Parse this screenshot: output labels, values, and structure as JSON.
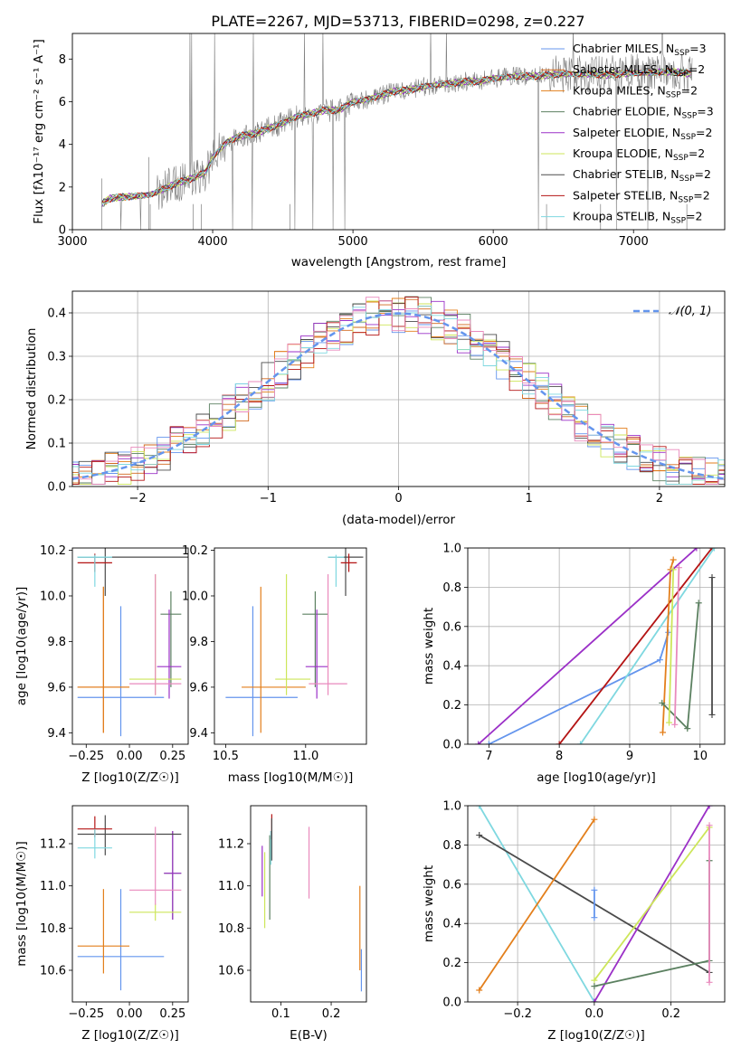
{
  "figure_title": "PLATE=2267, MJD=53713, FIBERID=0298, z=0.227",
  "colors": {
    "chabrier_miles": "#6495ed",
    "salpeter_miles": "#d2691e",
    "kroupa_miles": "#e37f1c",
    "chabrier_elodie": "#5b8060",
    "salpeter_elodie": "#9b30c7",
    "kroupa_elodie": "#cde65a",
    "chabrier_stelib": "#4b4b4b",
    "salpeter_stelib": "#b41414",
    "kroupa_stelib": "#7fd8e0",
    "data": "#808080",
    "gauss": "#6495ed"
  },
  "chart_data": [
    {
      "id": "spectrum",
      "type": "line",
      "title": "PLATE=2267, MJD=53713, FIBERID=0298, z=0.227",
      "xlabel": "wavelength [Angstrom, rest frame]",
      "ylabel": "Flux [f_λ10^-17 erg cm^-2 s^-1 A^-1]",
      "xlim": [
        3000,
        7650
      ],
      "ylim": [
        0,
        9.2
      ],
      "xticks": [
        "3000",
        "4000",
        "5000",
        "6000",
        "7000"
      ],
      "yticks": [
        "0",
        "2",
        "4",
        "6",
        "8"
      ],
      "legend_position": "right",
      "legend": [
        {
          "label": "Chabrier MILES, N",
          "sub": "SSP",
          "suffix": "=3",
          "color": "#6495ed"
        },
        {
          "label": "Salpeter MILES, N",
          "sub": "SSP",
          "suffix": "=2",
          "color": "#d2691e"
        },
        {
          "label": "Kroupa MILES, N",
          "sub": "SSP",
          "suffix": "=2",
          "color": "#e37f1c"
        },
        {
          "label": "Chabrier ELODIE, N",
          "sub": "SSP",
          "suffix": "=3",
          "color": "#5b8060"
        },
        {
          "label": "Salpeter ELODIE, N",
          "sub": "SSP",
          "suffix": "=2",
          "color": "#9b30c7"
        },
        {
          "label": "Kroupa ELODIE, N",
          "sub": "SSP",
          "suffix": "=2",
          "color": "#cde65a"
        },
        {
          "label": "Chabrier STELIB, N",
          "sub": "SSP",
          "suffix": "=2",
          "color": "#4b4b4b"
        },
        {
          "label": "Salpeter STELIB, N",
          "sub": "SSP",
          "suffix": "=2",
          "color": "#b41414"
        },
        {
          "label": "Kroupa STELIB, N",
          "sub": "SSP",
          "suffix": "=2",
          "color": "#7fd8e0"
        }
      ],
      "model_continuum": {
        "x": [
          3210,
          3260,
          3300,
          3400,
          3500,
          3560,
          3650,
          3750,
          3850,
          3950,
          4000,
          4100,
          4200,
          4300,
          4400,
          4500,
          4600,
          4700,
          4800,
          4900,
          5000,
          5100,
          5200,
          5300,
          5400,
          5500,
          5600,
          5700,
          5800,
          5900,
          6000,
          6100,
          6200,
          6300,
          6400,
          6500,
          6600,
          6700,
          6800,
          6900,
          7000,
          7100,
          7200,
          7300,
          7400
        ],
        "y": [
          1.2,
          1.45,
          1.5,
          1.55,
          1.6,
          1.65,
          1.9,
          2.2,
          2.4,
          2.7,
          3.4,
          4.1,
          4.4,
          4.5,
          4.75,
          5.0,
          5.3,
          5.45,
          5.6,
          5.6,
          6.0,
          6.1,
          6.3,
          6.5,
          6.55,
          6.7,
          6.8,
          6.85,
          6.95,
          6.95,
          7.1,
          7.15,
          7.2,
          7.2,
          7.25,
          7.3,
          7.3,
          7.3,
          7.25,
          7.3,
          7.35,
          7.35,
          7.4,
          7.4,
          7.3
        ]
      }
    },
    {
      "id": "residuals",
      "type": "line",
      "xlabel": "(data-model)/error",
      "ylabel": "Normed distribution",
      "xlim": [
        -2.5,
        2.5
      ],
      "ylim": [
        0,
        0.45
      ],
      "xticks": [
        "−2",
        "−1",
        "0",
        "1",
        "2"
      ],
      "yticks": [
        "0.0",
        "0.1",
        "0.2",
        "0.3",
        "0.4"
      ],
      "grid": true,
      "legend_position": "top-right",
      "legend": [
        {
          "label": "𝒩(0, 1)",
          "color": "#6495ed",
          "style": "dashed"
        }
      ],
      "gauss": {
        "mu": 0,
        "sigma": 1
      }
    },
    {
      "id": "age_vs_Z",
      "type": "scatter",
      "xlabel": "Z [log10(Z/Z☉)]",
      "ylabel": "age [log10(age/yr)]",
      "xlim": [
        -0.33,
        0.34
      ],
      "ylim": [
        9.35,
        10.21
      ],
      "xticks": [
        "−0.25",
        "0.00",
        "0.25"
      ],
      "yticks": [
        "9.4",
        "9.6",
        "9.8",
        "10.0",
        "10.2"
      ],
      "points": [
        {
          "name": "Chabrier MILES",
          "color": "#6495ed",
          "x": -0.05,
          "xerr": [
            0.25,
            0.25
          ],
          "y": 9.555,
          "yerr": [
            0.17,
            0.4
          ]
        },
        {
          "name": "Salpeter MILES",
          "color": "#d2691e",
          "x": -0.15,
          "xerr": [
            0.15,
            0.15
          ],
          "y": 9.6,
          "yerr": [
            0.2,
            0.44
          ]
        },
        {
          "name": "Kroupa MILES",
          "color": "#e37f1c",
          "x": -0.15,
          "xerr": [
            0.15,
            0.15
          ],
          "y": 9.6,
          "yerr": [
            0.2,
            0.44
          ]
        },
        {
          "name": "Chabrier ELODIE",
          "color": "#5b8060",
          "x": 0.24,
          "xerr": [
            0.06,
            0.06
          ],
          "y": 9.92,
          "yerr": [
            0.32,
            0.1
          ]
        },
        {
          "name": "Salpeter ELODIE",
          "color": "#9b30c7",
          "x": 0.23,
          "xerr": [
            0.07,
            0.07
          ],
          "y": 9.69,
          "yerr": [
            0.14,
            0.25
          ]
        },
        {
          "name": "Kroupa ELODIE",
          "color": "#cde65a",
          "x": 0.15,
          "xerr": [
            0.15,
            0.15
          ],
          "y": 9.635,
          "yerr": [
            0.07,
            0.46
          ]
        },
        {
          "name": "Chabrier STELIB",
          "color": "#4b4b4b",
          "x": -0.14,
          "xerr": [
            0.16,
            0.6
          ],
          "y": 10.17,
          "yerr": [
            0.17,
            0.05
          ]
        },
        {
          "name": "Salpeter STELIB",
          "color": "#b41414",
          "x": -0.2,
          "xerr": [
            0.1,
            0.1
          ],
          "y": 10.145,
          "yerr": [
            0.04,
            0.04
          ]
        },
        {
          "name": "Kroupa STELIB",
          "color": "#7fd8e0",
          "x": -0.2,
          "xerr": [
            0.1,
            0.1
          ],
          "y": 10.17,
          "yerr": [
            0.13,
            0.01
          ]
        },
        {
          "name": "pink",
          "color": "#e98abd",
          "x": 0.15,
          "xerr": [
            0.15,
            0.15
          ],
          "y": 9.615,
          "yerr": [
            0.05,
            0.48
          ]
        }
      ]
    },
    {
      "id": "age_vs_mass",
      "type": "scatter",
      "xlabel": "mass [log10(M/M☉)]",
      "ylabel": "",
      "xlim": [
        10.43,
        11.38
      ],
      "ylim": [
        9.35,
        10.21
      ],
      "xticks": [
        "10.5",
        "11.0"
      ],
      "yticks": [
        "9.4",
        "9.6",
        "9.8",
        "10.0",
        "10.2"
      ],
      "points": [
        {
          "name": "Chabrier MILES",
          "color": "#6495ed",
          "x": 10.67,
          "xerr": [
            0.17,
            0.28
          ],
          "y": 9.555,
          "yerr": [
            0.17,
            0.4
          ]
        },
        {
          "name": "Kroupa MILES",
          "color": "#e37f1c",
          "x": 10.72,
          "xerr": [
            0.12,
            0.28
          ],
          "y": 9.6,
          "yerr": [
            0.2,
            0.44
          ]
        },
        {
          "name": "Chabrier ELODIE",
          "color": "#5b8060",
          "x": 11.06,
          "xerr": [
            0.08,
            0.08
          ],
          "y": 9.92,
          "yerr": [
            0.32,
            0.1
          ]
        },
        {
          "name": "Salpeter ELODIE",
          "color": "#9b30c7",
          "x": 11.07,
          "xerr": [
            0.07,
            0.07
          ],
          "y": 9.69,
          "yerr": [
            0.14,
            0.25
          ]
        },
        {
          "name": "Kroupa ELODIE",
          "color": "#cde65a",
          "x": 10.88,
          "xerr": [
            0.07,
            0.15
          ],
          "y": 9.635,
          "yerr": [
            0.07,
            0.46
          ]
        },
        {
          "name": "Chabrier STELIB",
          "color": "#4b4b4b",
          "x": 11.25,
          "xerr": [
            0.11,
            0.11
          ],
          "y": 10.17,
          "yerr": [
            0.17,
            0.05
          ]
        },
        {
          "name": "Salpeter STELIB",
          "color": "#b41414",
          "x": 11.27,
          "xerr": [
            0.05,
            0.05
          ],
          "y": 10.145,
          "yerr": [
            0.04,
            0.04
          ]
        },
        {
          "name": "Kroupa STELIB",
          "color": "#7fd8e0",
          "x": 11.19,
          "xerr": [
            0.05,
            0.05
          ],
          "y": 10.17,
          "yerr": [
            0.13,
            0.01
          ]
        },
        {
          "name": "pink",
          "color": "#e98abd",
          "x": 11.14,
          "xerr": [
            0.12,
            0.12
          ],
          "y": 9.615,
          "yerr": [
            0.05,
            0.48
          ]
        }
      ]
    },
    {
      "id": "weight_vs_age",
      "type": "line",
      "xlabel": "age [log10(age/yr)]",
      "ylabel": "mass weight",
      "xlim": [
        6.7,
        10.35
      ],
      "ylim": [
        0,
        1
      ],
      "xticks": [
        "7",
        "8",
        "9",
        "10"
      ],
      "yticks": [
        "0.0",
        "0.2",
        "0.4",
        "0.6",
        "0.8",
        "1.0"
      ],
      "grid": true,
      "series": [
        {
          "color": "#6495ed",
          "x": [
            7.0,
            9.43,
            9.55
          ],
          "y": [
            0.0,
            0.43,
            0.57
          ]
        },
        {
          "color": "#9b30c7",
          "x": [
            6.85,
            9.95
          ],
          "y": [
            0.0,
            1.0
          ]
        },
        {
          "color": "#b41414",
          "x": [
            8.0,
            10.17
          ],
          "y": [
            0.0,
            1.0
          ]
        },
        {
          "color": "#7fd8e0",
          "x": [
            8.3,
            10.2
          ],
          "y": [
            0.0,
            1.0
          ]
        },
        {
          "color": "#e37f1c",
          "x": [
            9.47,
            9.58,
            9.62
          ],
          "y": [
            0.06,
            0.89,
            0.94
          ]
        },
        {
          "color": "#5b8060",
          "x": [
            9.46,
            9.82,
            9.98
          ],
          "y": [
            0.21,
            0.08,
            0.72
          ]
        },
        {
          "color": "#cde65a",
          "x": [
            9.56,
            9.62
          ],
          "y": [
            0.11,
            0.89
          ]
        },
        {
          "color": "#e98abd",
          "x": [
            9.64,
            9.7
          ],
          "y": [
            0.1,
            0.9
          ]
        },
        {
          "color": "#4b4b4b",
          "x": [
            10.17,
            10.17
          ],
          "y": [
            0.15,
            0.85
          ]
        }
      ]
    },
    {
      "id": "mass_vs_Z",
      "type": "scatter",
      "xlabel": "Z [log10(Z/Z☉)]",
      "ylabel": "mass [log10(M/M☉)]",
      "xlim": [
        -0.33,
        0.34
      ],
      "ylim": [
        10.45,
        11.38
      ],
      "xticks": [
        "−0.25",
        "0.00",
        "0.25"
      ],
      "yticks": [
        "10.6",
        "10.8",
        "11.0",
        "11.2"
      ],
      "points": [
        {
          "name": "Chabrier MILES",
          "color": "#6495ed",
          "x": -0.05,
          "xerr": [
            0.25,
            0.25
          ],
          "y": 10.665,
          "yerr": [
            0.16,
            0.32
          ]
        },
        {
          "name": "Kroupa MILES",
          "color": "#e37f1c",
          "x": -0.15,
          "xerr": [
            0.15,
            0.15
          ],
          "y": 10.715,
          "yerr": [
            0.13,
            0.27
          ]
        },
        {
          "name": "Chabrier ELODIE",
          "color": "#5b8060",
          "x": 0.25,
          "xerr": [
            0.05,
            0.05
          ],
          "y": 11.06,
          "yerr": [
            0.22,
            0.2
          ]
        },
        {
          "name": "Salpeter ELODIE",
          "color": "#9b30c7",
          "x": 0.25,
          "xerr": [
            0.05,
            0.05
          ],
          "y": 11.06,
          "yerr": [
            0.22,
            0.2
          ]
        },
        {
          "name": "Kroupa ELODIE",
          "color": "#cde65a",
          "x": 0.15,
          "xerr": [
            0.15,
            0.15
          ],
          "y": 10.875,
          "yerr": [
            0.04,
            0.04
          ]
        },
        {
          "name": "Chabrier STELIB",
          "color": "#4b4b4b",
          "x": -0.14,
          "xerr": [
            0.16,
            0.44
          ],
          "y": 11.245,
          "yerr": [
            0.1,
            0.09
          ]
        },
        {
          "name": "Salpeter STELIB",
          "color": "#b41414",
          "x": -0.2,
          "xerr": [
            0.1,
            0.1
          ],
          "y": 11.27,
          "yerr": [
            0.04,
            0.06
          ]
        },
        {
          "name": "Kroupa STELIB",
          "color": "#7fd8e0",
          "x": -0.2,
          "xerr": [
            0.1,
            0.1
          ],
          "y": 11.18,
          "yerr": [
            0.05,
            0.09
          ]
        },
        {
          "name": "pink",
          "color": "#e98abd",
          "x": 0.15,
          "xerr": [
            0.15,
            0.15
          ],
          "y": 10.98,
          "yerr": [
            0.07,
            0.3
          ]
        }
      ]
    },
    {
      "id": "mass_vs_ebv",
      "type": "scatter",
      "xlabel": "E(B-V)",
      "ylabel": "",
      "xlim": [
        0.04,
        0.27
      ],
      "ylim": [
        10.45,
        11.38
      ],
      "xticks": [
        "0.1",
        "0.2"
      ],
      "yticks": [
        "10.6",
        "10.8",
        "11.0",
        "11.2"
      ],
      "points": [
        {
          "name": "Salpeter ELODIE",
          "color": "#9b30c7",
          "x": 0.063,
          "xerr": [
            0,
            0
          ],
          "y": 11.07,
          "yerr": [
            0.12,
            0.12
          ]
        },
        {
          "name": "Kroupa ELODIE",
          "color": "#cde65a",
          "x": 0.068,
          "xerr": [
            0,
            0
          ],
          "y": 10.98,
          "yerr": [
            0.18,
            0.18
          ]
        },
        {
          "name": "Chabrier ELODIE",
          "color": "#5b8060",
          "x": 0.078,
          "xerr": [
            0,
            0
          ],
          "y": 11.04,
          "yerr": [
            0.2,
            0.2
          ]
        },
        {
          "name": "Kroupa STELIB",
          "color": "#7fd8e0",
          "x": 0.08,
          "xerr": [
            0,
            0
          ],
          "y": 11.18,
          "yerr": [
            0.08,
            0.08
          ]
        },
        {
          "name": "Salpeter STELIB",
          "color": "#b41414",
          "x": 0.082,
          "xerr": [
            0,
            0
          ],
          "y": 11.28,
          "yerr": [
            0.06,
            0.06
          ]
        },
        {
          "name": "Chabrier STELIB",
          "color": "#4b4b4b",
          "x": 0.082,
          "xerr": [
            0,
            0
          ],
          "y": 11.22,
          "yerr": [
            0.1,
            0.1
          ]
        },
        {
          "name": "pink",
          "color": "#e98abd",
          "x": 0.156,
          "xerr": [
            0,
            0
          ],
          "y": 11.11,
          "yerr": [
            0.17,
            0.17
          ]
        },
        {
          "name": "Kroupa MILES",
          "color": "#e37f1c",
          "x": 0.257,
          "xerr": [
            0,
            0
          ],
          "y": 10.8,
          "yerr": [
            0.2,
            0.2
          ]
        },
        {
          "name": "Chabrier MILES",
          "color": "#6495ed",
          "x": 0.26,
          "xerr": [
            0,
            0
          ],
          "y": 10.6,
          "yerr": [
            0.1,
            0.1
          ]
        }
      ]
    },
    {
      "id": "weight_vs_Z",
      "type": "line",
      "xlabel": "Z [log10(Z/Z☉)]",
      "ylabel": "mass weight",
      "xlim": [
        -0.33,
        0.34
      ],
      "ylim": [
        0,
        1
      ],
      "xticks": [
        "−0.2",
        "0.0",
        "0.2"
      ],
      "yticks": [
        "0.0",
        "0.2",
        "0.4",
        "0.6",
        "0.8",
        "1.0"
      ],
      "grid": true,
      "series": [
        {
          "color": "#7fd8e0",
          "x": [
            -0.3,
            0.0
          ],
          "y": [
            1.0,
            0.0
          ]
        },
        {
          "color": "#4b4b4b",
          "x": [
            -0.3,
            0.3
          ],
          "y": [
            0.85,
            0.15
          ]
        },
        {
          "color": "#e37f1c",
          "x": [
            -0.3,
            0.0
          ],
          "y": [
            0.06,
            0.93
          ]
        },
        {
          "color": "#6495ed",
          "x": [
            0.0,
            0.0
          ],
          "y": [
            0.43,
            0.57
          ]
        },
        {
          "color": "#9b30c7",
          "x": [
            0.0,
            0.3
          ],
          "y": [
            0.0,
            1.0
          ]
        },
        {
          "color": "#cde65a",
          "x": [
            0.0,
            0.3
          ],
          "y": [
            0.11,
            0.89
          ]
        },
        {
          "color": "#5b8060",
          "x": [
            0.0,
            0.3,
            0.3
          ],
          "y": [
            0.08,
            0.21,
            0.72
          ]
        },
        {
          "color": "#e98abd",
          "x": [
            0.3,
            0.3
          ],
          "y": [
            0.1,
            0.9
          ]
        }
      ]
    }
  ]
}
